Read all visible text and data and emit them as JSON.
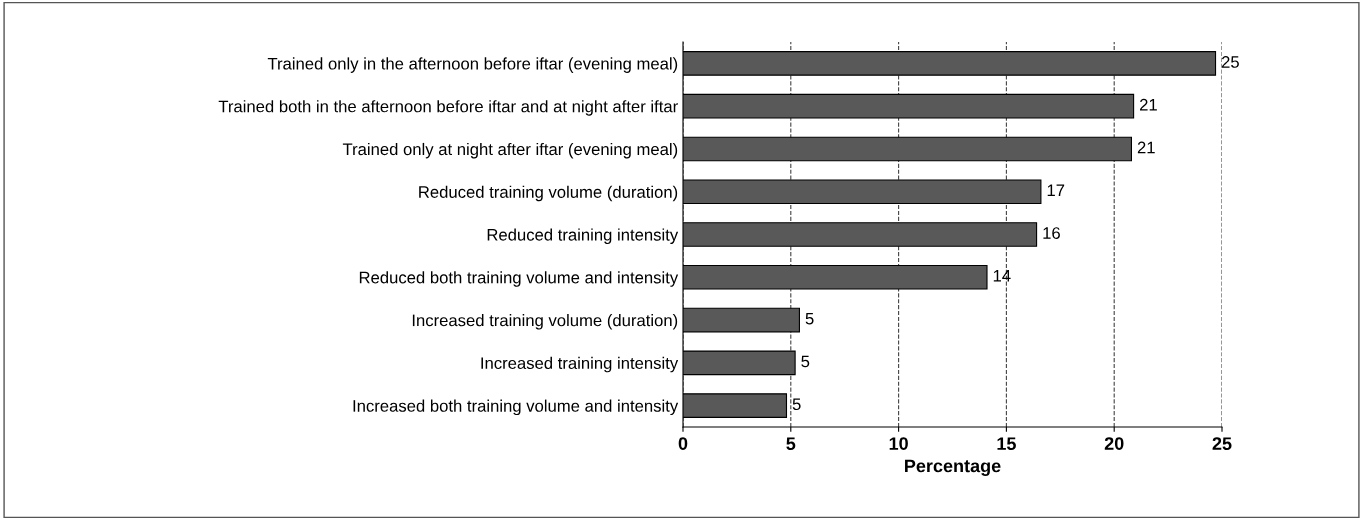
{
  "chart_data": {
    "type": "bar",
    "orientation": "horizontal",
    "xlabel": "Percentage",
    "categories": [
      "Trained only in the afternoon before iftar (evening meal)",
      "Trained both in the afternoon before iftar and at night after iftar",
      "Trained only at night after iftar (evening meal)",
      "Reduced training volume (duration)",
      "Reduced training intensity",
      "Reduced both training volume and intensity",
      "Increased training volume (duration)",
      "Increased training intensity",
      "Increased both training volume and intensity"
    ],
    "values": [
      24.7,
      20.9,
      20.8,
      16.6,
      16.4,
      14.1,
      5.4,
      5.2,
      4.8
    ],
    "value_labels": [
      "25",
      "21",
      "21",
      "17",
      "16",
      "14",
      "5",
      "5",
      "5"
    ],
    "color": "#595959",
    "xlim": [
      0,
      25
    ],
    "xticks": [
      0,
      5,
      10,
      15,
      20,
      25
    ],
    "grid": "x",
    "line_style": "dashed"
  }
}
